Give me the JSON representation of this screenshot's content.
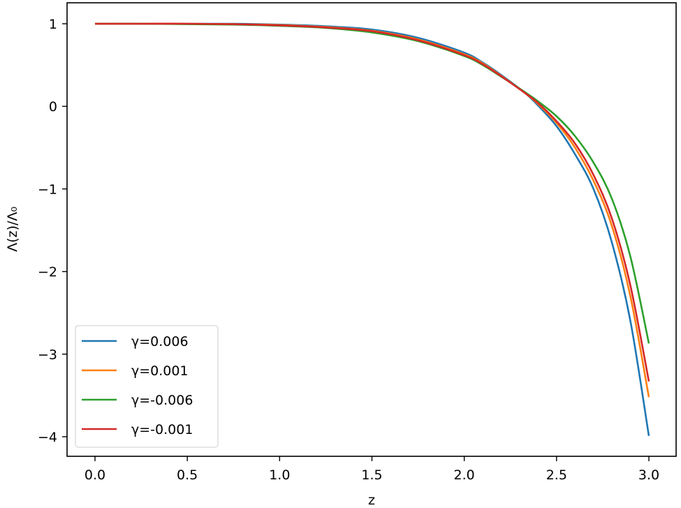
{
  "chart_data": {
    "type": "line",
    "title": "",
    "xlabel": "z",
    "ylabel": "Λ(z)/Λ₀",
    "xlim": [
      -0.15,
      3.15
    ],
    "ylim": [
      -4.25,
      1.25
    ],
    "grid": false,
    "legend_position": "lower left",
    "x_ticks": [
      0.0,
      0.5,
      1.0,
      1.5,
      2.0,
      2.5,
      3.0
    ],
    "x_tick_labels": [
      "0.0",
      "0.5",
      "1.0",
      "1.5",
      "2.0",
      "2.5",
      "3.0"
    ],
    "y_ticks": [
      1,
      0,
      -1,
      -2,
      -3,
      -4
    ],
    "y_tick_labels": [
      "1",
      "0",
      "−1",
      "−2",
      "−3",
      "−4"
    ],
    "x": [
      0.0,
      0.25,
      0.5,
      0.75,
      1.0,
      1.25,
      1.5,
      1.75,
      2.0,
      2.1,
      2.2,
      2.33,
      2.4,
      2.5,
      2.6,
      2.7,
      2.8,
      2.9,
      3.0
    ],
    "series": [
      {
        "name": "γ=0.006",
        "color": "#1f77b4",
        "values": [
          1.0,
          1.0,
          1.0,
          1.0,
          0.99,
          0.97,
          0.93,
          0.83,
          0.65,
          0.53,
          0.38,
          0.16,
          0.01,
          -0.24,
          -0.58,
          -1.0,
          -1.65,
          -2.6,
          -3.99
        ]
      },
      {
        "name": "γ=0.001",
        "color": "#ff7f0e",
        "values": [
          1.0,
          1.0,
          1.0,
          0.995,
          0.985,
          0.96,
          0.915,
          0.81,
          0.63,
          0.52,
          0.37,
          0.16,
          0.03,
          -0.2,
          -0.5,
          -0.9,
          -1.45,
          -2.3,
          -3.52
        ]
      },
      {
        "name": "γ=-0.006",
        "color": "#2ca02c",
        "values": [
          1.0,
          1.0,
          0.995,
          0.99,
          0.975,
          0.95,
          0.895,
          0.79,
          0.61,
          0.5,
          0.36,
          0.17,
          0.06,
          -0.12,
          -0.36,
          -0.68,
          -1.12,
          -1.82,
          -2.87
        ]
      },
      {
        "name": "γ=-0.001",
        "color": "#d62728",
        "values": [
          1.0,
          1.0,
          1.0,
          0.995,
          0.98,
          0.955,
          0.91,
          0.8,
          0.62,
          0.51,
          0.365,
          0.16,
          0.04,
          -0.18,
          -0.45,
          -0.83,
          -1.36,
          -2.17,
          -3.33
        ]
      }
    ]
  }
}
